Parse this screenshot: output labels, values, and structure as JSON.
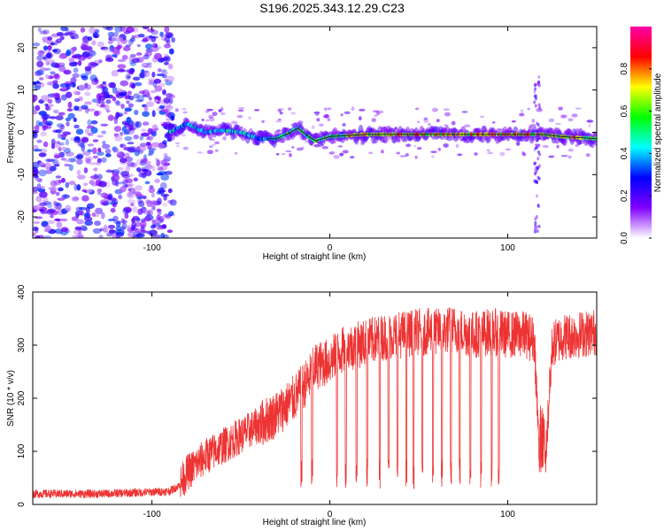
{
  "title": "S196.2025.343.12.29.C23",
  "colors": {
    "snr_line": "#ee3333",
    "ridge_color": "#222222"
  },
  "chart_data": [
    {
      "type": "heatmap",
      "xlabel": "Height of straight line (km)",
      "ylabel": "Frequency (Hz)",
      "xlim": [
        -167,
        150
      ],
      "ylim": [
        -25,
        25
      ],
      "xticks": [
        -100,
        0,
        100
      ],
      "xtick_labels": [
        "-100",
        "0",
        "100"
      ],
      "yticks": [
        -20,
        -10,
        0,
        10,
        20
      ],
      "ytick_labels": [
        "-20",
        "-10",
        "0",
        "10",
        "20"
      ],
      "colorbar": {
        "label": "Normalized spectral amplitude",
        "range": [
          0,
          1
        ],
        "ticks": [
          0.0,
          0.2,
          0.4,
          0.6,
          0.8
        ],
        "tick_labels": [
          "0.0",
          "0.2",
          "0.4",
          "0.6",
          "0.8"
        ],
        "stops": [
          "#ffffff",
          "#8000ff",
          "#0000ff",
          "#00ffff",
          "#00ff00",
          "#ffff00",
          "#ff0000",
          "#ff00aa"
        ]
      },
      "ridge": {
        "height": [
          -90,
          -80,
          -70,
          -60,
          -50,
          -40,
          -30,
          -22,
          -18,
          -12,
          -8,
          0,
          20,
          40,
          60,
          80,
          100,
          115,
          120,
          130,
          150
        ],
        "freq": [
          0,
          2,
          0,
          0.5,
          0,
          -1.5,
          -1.5,
          0,
          1,
          -1,
          -2,
          -1,
          -0.5,
          -0.5,
          -0.5,
          -0.5,
          -0.5,
          -0.5,
          -0.5,
          -1,
          -1.5
        ]
      },
      "noise_region": [
        -167,
        -88
      ]
    },
    {
      "type": "line",
      "xlabel": "Height of straight line (km)",
      "ylabel": "SNR (10 * v/v)",
      "xlim": [
        -167,
        150
      ],
      "ylim": [
        0,
        400
      ],
      "xticks": [
        -100,
        0,
        100
      ],
      "xtick_labels": [
        "-100",
        "0",
        "100"
      ],
      "yticks": [
        0,
        100,
        200,
        300,
        400
      ],
      "ytick_labels": [
        "0",
        "100",
        "200",
        "300",
        "400"
      ],
      "series": [
        {
          "name": "SNR",
          "x": [
            -167,
            -150,
            -130,
            -110,
            -90,
            -85,
            -80,
            -70,
            -60,
            -50,
            -40,
            -30,
            -20,
            -12,
            -8,
            0,
            5,
            10,
            20,
            30,
            40,
            50,
            60,
            70,
            80,
            90,
            100,
            110,
            115,
            118,
            121,
            125,
            130,
            140,
            150
          ],
          "y": [
            20,
            20,
            20,
            22,
            25,
            35,
            60,
            90,
            110,
            130,
            150,
            170,
            200,
            235,
            260,
            270,
            285,
            295,
            305,
            315,
            320,
            325,
            325,
            330,
            320,
            325,
            320,
            320,
            310,
            70,
            70,
            300,
            315,
            320,
            325
          ],
          "dropouts_x": [
            -16,
            -10,
            4,
            9,
            15,
            21,
            28,
            33,
            38,
            43,
            47,
            52,
            58,
            63,
            68,
            73,
            79,
            85,
            91,
            95
          ]
        }
      ]
    }
  ]
}
